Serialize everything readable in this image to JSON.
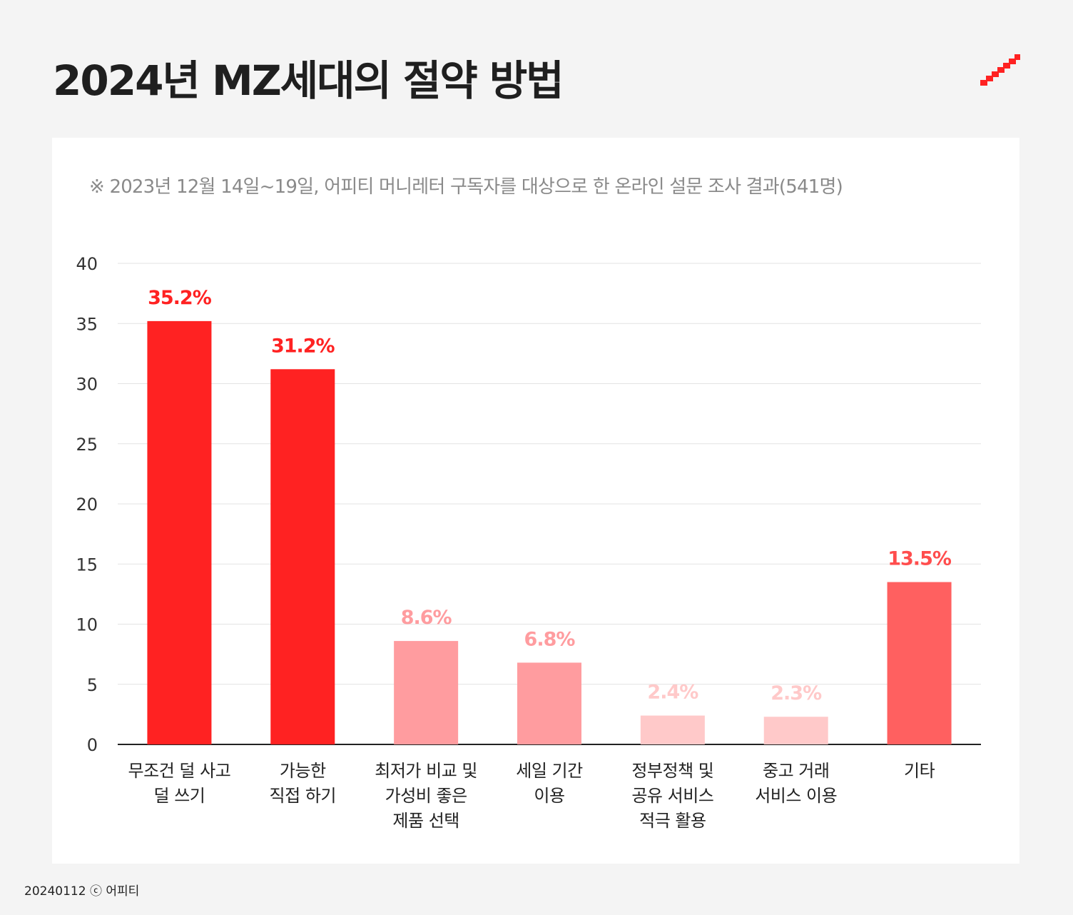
{
  "header": {
    "title": "2024년 MZ세대의 절약 방법",
    "logo_icon": "brand-stairs-icon",
    "logo_color": "#ff2222"
  },
  "subtitle": "※ 2023년 12월 14일~19일, 어피티 머니레터 구독자를 대상으로 한 온라인 설문 조사 결과(541명)",
  "footer": {
    "date": "20240112",
    "copyright_icon": "copyright-icon",
    "brand": "어피티"
  },
  "chart_data": {
    "type": "bar",
    "title": "2024년 MZ세대의 절약 방법",
    "xlabel": "",
    "ylabel": "",
    "ylim": [
      0,
      40
    ],
    "yticks": [
      0,
      5,
      10,
      15,
      20,
      25,
      30,
      35,
      40
    ],
    "grid": true,
    "categories": [
      [
        "무조건 덜 사고",
        "덜 쓰기"
      ],
      [
        "가능한",
        "직접 하기"
      ],
      [
        "최저가 비교 및",
        "가성비 좋은",
        "제품 선택"
      ],
      [
        "세일 기간",
        "이용"
      ],
      [
        "정부정책 및",
        "공유 서비스",
        "적극 활용"
      ],
      [
        "중고 거래",
        "서비스 이용"
      ],
      [
        "기타"
      ]
    ],
    "values": [
      35.2,
      31.2,
      8.6,
      6.8,
      2.4,
      2.3,
      13.5
    ],
    "data_labels": [
      "35.2%",
      "31.2%",
      "8.6%",
      "6.8%",
      "2.4%",
      "2.3%",
      "13.5%"
    ],
    "bar_colors": [
      "#ff2222",
      "#ff2222",
      "#ff9c9f",
      "#ff9c9f",
      "#ffc9c9",
      "#ffc9c9",
      "#ff6060"
    ],
    "label_colors": [
      "#ff2222",
      "#ff2222",
      "#ff9c9f",
      "#ff9c9f",
      "#ffc9c9",
      "#ffc9c9",
      "#ff4d4d"
    ]
  }
}
